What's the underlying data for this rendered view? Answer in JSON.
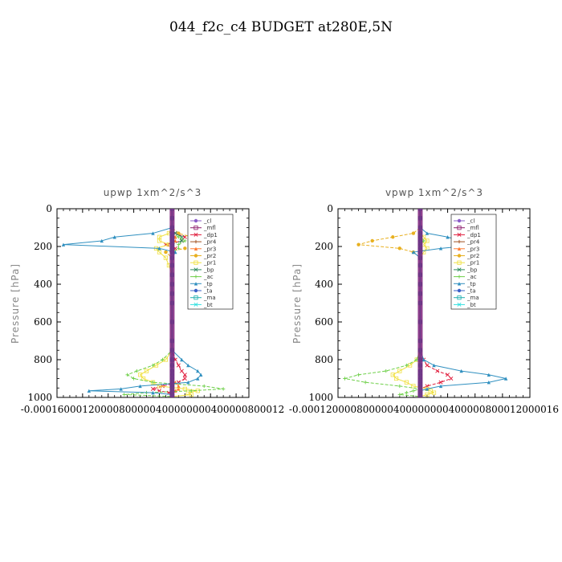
{
  "figure": {
    "title": "044_f2c_c4  BUDGET at280E,5N"
  },
  "chart_data": [
    {
      "type": "line",
      "title": "upwp   1xm^2/s^3",
      "ylabel": "Pressure [hPa]",
      "ylim": [
        0,
        1000
      ],
      "y_inverted": true,
      "xlim": [
        -0.00018,
        0.00012
      ],
      "yticks": [
        0,
        200,
        400,
        600,
        800,
        1000
      ],
      "xtick_text": "-0.00016000120000800000400000000400000800012",
      "legend_placement": "top-right",
      "grid": false,
      "p": [
        0,
        50,
        100,
        130,
        150,
        170,
        190,
        210,
        230,
        260,
        300,
        350,
        400,
        450,
        500,
        600,
        700,
        750,
        800,
        830,
        860,
        880,
        900,
        920,
        940,
        955,
        965,
        975,
        985,
        995
      ],
      "series": [
        {
          "name": "_cl",
          "color": "#8a5cc9",
          "values": [
            0,
            0,
            0,
            0,
            0,
            0,
            0,
            0,
            0,
            0,
            0,
            0,
            0,
            0,
            0,
            0,
            0,
            0,
            0,
            0,
            0,
            0,
            0,
            0,
            0,
            0,
            0,
            0,
            0,
            0
          ]
        },
        {
          "name": "_mfl",
          "color": "#8b1a6b",
          "values": [
            0,
            0,
            0,
            0,
            0,
            0,
            0,
            0,
            0,
            0,
            0,
            0,
            0,
            0,
            0,
            0,
            0,
            0,
            0,
            0,
            0,
            0,
            0,
            0,
            0,
            0,
            0,
            0,
            0,
            0
          ]
        },
        {
          "name": "_dp1",
          "color": "#e01a3a",
          "values": [
            0,
            0,
            0,
            5e-06,
            2e-05,
            1.5e-05,
            -1e-05,
            5e-06,
            0,
            0,
            0,
            0,
            0,
            0,
            0,
            0,
            0,
            0,
            5e-06,
            1e-05,
            1.5e-05,
            2e-05,
            2e-05,
            1e-05,
            -1.5e-05,
            -3e-05,
            -2e-05,
            -5e-06,
            0,
            0
          ]
        },
        {
          "name": "_pr4",
          "color": "#a05020",
          "values": [
            0,
            0,
            0,
            0,
            0,
            0,
            0,
            0,
            0,
            0,
            0,
            0,
            0,
            0,
            0,
            0,
            0,
            0,
            0,
            0,
            0,
            0,
            0,
            0,
            0,
            0,
            0,
            0,
            0,
            0
          ]
        },
        {
          "name": "_pr3",
          "color": "#ff7a30",
          "values": [
            0,
            0,
            0,
            0,
            5e-06,
            5e-06,
            0,
            0,
            0,
            0,
            0,
            0,
            0,
            0,
            0,
            0,
            0,
            0,
            0,
            0,
            0,
            0,
            0,
            5e-06,
            1e-05,
            1e-05,
            5e-06,
            0,
            0,
            0
          ]
        },
        {
          "name": "_pr2",
          "color": "#e8b020",
          "values": [
            0,
            0,
            0,
            1e-05,
            3e-05,
            4e-05,
            8e-05,
            2e-05,
            -1e-05,
            0,
            0,
            0,
            0,
            0,
            0,
            0,
            0,
            0,
            0,
            0,
            0,
            0,
            0,
            0,
            0,
            0,
            0,
            0,
            0,
            0
          ]
        },
        {
          "name": "_pr1",
          "color": "#f0e040",
          "values": [
            0,
            0,
            0,
            -5e-06,
            -2e-05,
            -2e-05,
            -5e-06,
            -2.5e-05,
            -2e-05,
            -1e-05,
            -5e-06,
            0,
            0,
            0,
            0,
            0,
            0,
            0,
            -1e-05,
            -2.5e-05,
            -4e-05,
            -5e-05,
            -4.5e-05,
            -3e-05,
            -2e-05,
            2e-05,
            4e-05,
            2.5e-05,
            3e-05,
            0
          ]
        },
        {
          "name": "_bp",
          "color": "#2a8a5a",
          "values": [
            0,
            0,
            0,
            5e-06,
            1.5e-05,
            1.5e-05,
            0,
            0,
            0,
            0,
            0,
            0,
            0,
            0,
            0,
            0,
            0,
            0,
            0,
            0,
            0,
            0,
            0,
            0,
            0,
            0,
            0,
            0,
            0,
            0
          ]
        },
        {
          "name": "_ac",
          "color": "#6fd04a",
          "values": [
            0,
            0,
            0,
            0,
            1e-05,
            2e-05,
            1e-05,
            1e-05,
            0,
            0,
            0,
            0,
            0,
            0,
            0,
            0,
            0,
            0,
            -1.5e-05,
            -3e-05,
            -5.5e-05,
            -7e-05,
            -6e-05,
            -3e-05,
            5e-05,
            8e-05,
            3e-05,
            -4e-05,
            -7.5e-05,
            0
          ]
        },
        {
          "name": "_tp",
          "color": "#3090c0",
          "values": [
            0,
            0,
            0,
            -3e-05,
            -9e-05,
            -0.00011,
            -0.00017,
            -2e-05,
            5e-06,
            0,
            0,
            0,
            0,
            0,
            0,
            0,
            0,
            0,
            1.5e-05,
            2.5e-05,
            4e-05,
            4.5e-05,
            4e-05,
            2.5e-05,
            -5e-05,
            -8e-05,
            -0.00013,
            -3e-05,
            0,
            0
          ]
        },
        {
          "name": "_ta",
          "color": "#3a60c8",
          "values": [
            0,
            0,
            0,
            0,
            0,
            0,
            0,
            0,
            0,
            0,
            0,
            0,
            0,
            0,
            0,
            0,
            0,
            0,
            0,
            0,
            0,
            0,
            0,
            0,
            0,
            0,
            0,
            0,
            0,
            0
          ]
        },
        {
          "name": "_ma",
          "color": "#20b0b0",
          "values": [
            0,
            0,
            0,
            0,
            0,
            0,
            0,
            0,
            0,
            0,
            0,
            0,
            0,
            0,
            0,
            0,
            0,
            0,
            0,
            0,
            0,
            0,
            0,
            0,
            0,
            0,
            0,
            0,
            0,
            0
          ]
        },
        {
          "name": "_bt",
          "color": "#30e0e0",
          "values": [
            0,
            0,
            0,
            0,
            0,
            0,
            0,
            0,
            0,
            0,
            0,
            0,
            0,
            0,
            0,
            0,
            0,
            0,
            0,
            0,
            0,
            0,
            0,
            0,
            0,
            0,
            0,
            0,
            0,
            0
          ]
        }
      ]
    },
    {
      "type": "line",
      "title": "vpwp   1xm^2/s^3",
      "ylabel": "Pressure [hPa]",
      "ylim": [
        0,
        1000
      ],
      "y_inverted": true,
      "xlim": [
        -0.00012,
        0.00016
      ],
      "yticks": [
        0,
        200,
        400,
        600,
        800,
        1000
      ],
      "xtick_text": "-0.000120000800000400000000400000800012000016",
      "legend_placement": "top-right",
      "grid": false,
      "p": [
        0,
        50,
        100,
        130,
        150,
        170,
        190,
        210,
        230,
        260,
        300,
        350,
        400,
        450,
        500,
        600,
        700,
        750,
        800,
        830,
        860,
        880,
        900,
        920,
        940,
        955,
        965,
        975,
        985,
        995
      ],
      "series": [
        {
          "name": "_cl",
          "color": "#8a5cc9",
          "values": [
            0,
            0,
            0,
            0,
            0,
            0,
            0,
            0,
            0,
            0,
            0,
            0,
            0,
            0,
            0,
            0,
            0,
            0,
            0,
            0,
            0,
            0,
            0,
            0,
            0,
            0,
            0,
            0,
            0,
            0
          ]
        },
        {
          "name": "_mfl",
          "color": "#8b1a6b",
          "values": [
            0,
            0,
            0,
            0,
            0,
            0,
            0,
            0,
            0,
            0,
            0,
            0,
            0,
            0,
            0,
            0,
            0,
            0,
            0,
            0,
            0,
            0,
            0,
            0,
            0,
            0,
            0,
            0,
            0,
            0
          ]
        },
        {
          "name": "_dp1",
          "color": "#e01a3a",
          "values": [
            0,
            0,
            0,
            0,
            0,
            0,
            0,
            0,
            0,
            0,
            0,
            0,
            0,
            0,
            0,
            0,
            0,
            0,
            5e-06,
            1e-05,
            2.5e-05,
            4e-05,
            4.5e-05,
            3e-05,
            1e-05,
            0,
            0,
            0,
            0,
            0
          ]
        },
        {
          "name": "_pr4",
          "color": "#a05020",
          "values": [
            0,
            0,
            0,
            0,
            0,
            0,
            0,
            0,
            0,
            0,
            0,
            0,
            0,
            0,
            0,
            0,
            0,
            0,
            0,
            0,
            0,
            0,
            0,
            0,
            0,
            0,
            0,
            0,
            0,
            0
          ]
        },
        {
          "name": "_pr3",
          "color": "#ff7a30",
          "values": [
            0,
            0,
            0,
            0,
            0,
            0,
            0,
            0,
            0,
            0,
            0,
            0,
            0,
            0,
            0,
            0,
            0,
            0,
            0,
            0,
            0,
            0,
            0,
            0,
            0,
            0,
            0,
            0,
            0,
            0
          ]
        },
        {
          "name": "_pr2",
          "color": "#e8b020",
          "values": [
            0,
            0,
            0,
            -1e-05,
            -4e-05,
            -7e-05,
            -9e-05,
            -3e-05,
            -1e-05,
            0,
            0,
            0,
            0,
            0,
            0,
            0,
            0,
            0,
            0,
            0,
            0,
            0,
            0,
            0,
            0,
            0,
            0,
            0,
            0,
            0
          ]
        },
        {
          "name": "_pr1",
          "color": "#f0e040",
          "values": [
            0,
            0,
            0,
            0,
            5e-06,
            1e-05,
            5e-06,
            1e-05,
            5e-06,
            0,
            0,
            0,
            0,
            0,
            0,
            0,
            0,
            0,
            -5e-06,
            -1.5e-05,
            -3e-05,
            -4e-05,
            -3.5e-05,
            -2e-05,
            -1e-05,
            1e-05,
            1.5e-05,
            2e-05,
            1e-05,
            0
          ]
        },
        {
          "name": "_bp",
          "color": "#2a8a5a",
          "values": [
            0,
            0,
            0,
            0,
            0,
            0,
            0,
            0,
            0,
            0,
            0,
            0,
            0,
            0,
            0,
            0,
            0,
            0,
            0,
            0,
            0,
            0,
            0,
            0,
            0,
            0,
            0,
            0,
            0,
            0
          ]
        },
        {
          "name": "_ac",
          "color": "#6fd04a",
          "values": [
            0,
            0,
            0,
            0,
            0,
            5e-06,
            0,
            0,
            0,
            0,
            0,
            0,
            0,
            0,
            0,
            0,
            0,
            0,
            -5e-06,
            -2e-05,
            -5e-05,
            -9e-05,
            -0.00011,
            -8e-05,
            -3e-05,
            0,
            -1e-05,
            -2e-05,
            -3e-05,
            0
          ]
        },
        {
          "name": "_tp",
          "color": "#3090c0",
          "values": [
            0,
            0,
            0,
            1e-05,
            4e-05,
            6e-05,
            9e-05,
            3e-05,
            -1e-05,
            0,
            0,
            0,
            0,
            0,
            0,
            0,
            0,
            0,
            5e-06,
            2e-05,
            6e-05,
            0.0001,
            0.000125,
            0.0001,
            3e-05,
            1e-05,
            0,
            0,
            0,
            0
          ]
        },
        {
          "name": "_ta",
          "color": "#3a60c8",
          "values": [
            0,
            0,
            0,
            0,
            0,
            0,
            0,
            0,
            0,
            0,
            0,
            0,
            0,
            0,
            0,
            0,
            0,
            0,
            0,
            0,
            0,
            0,
            0,
            0,
            0,
            0,
            0,
            0,
            0,
            0
          ]
        },
        {
          "name": "_ma",
          "color": "#20b0b0",
          "values": [
            0,
            0,
            0,
            0,
            0,
            0,
            0,
            0,
            0,
            0,
            0,
            0,
            0,
            0,
            0,
            0,
            0,
            0,
            0,
            0,
            0,
            0,
            0,
            0,
            0,
            0,
            0,
            0,
            0,
            0
          ]
        },
        {
          "name": "_bt",
          "color": "#30e0e0",
          "values": [
            0,
            0,
            0,
            0,
            0,
            0,
            0,
            0,
            0,
            0,
            0,
            0,
            0,
            0,
            0,
            0,
            0,
            0,
            0,
            0,
            0,
            0,
            0,
            0,
            0,
            0,
            0,
            0,
            0,
            0
          ]
        }
      ]
    }
  ]
}
